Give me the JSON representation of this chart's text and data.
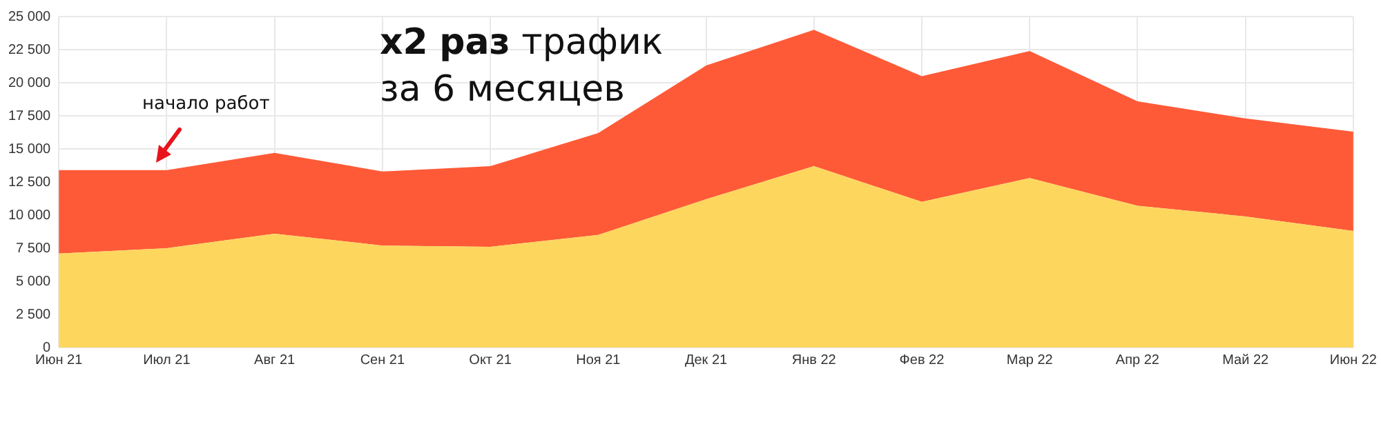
{
  "chart_data": {
    "type": "area",
    "title": "x2 раз трафик\nза 6 месяцев",
    "categories": [
      "Июн 21",
      "Июл 21",
      "Авг 21",
      "Сен 21",
      "Окт 21",
      "Ноя 21",
      "Дек 21",
      "Янв 22",
      "Фев 22",
      "Мар 22",
      "Апр 22",
      "Май 22",
      "Июн 22"
    ],
    "series": [
      {
        "color": "#fdd65e",
        "values": [
          7100,
          7500,
          8600,
          7700,
          7600,
          8500,
          11200,
          13700,
          11000,
          12800,
          10700,
          9900,
          8800
        ]
      },
      {
        "color": "#fe5a37",
        "values": [
          6300,
          5900,
          6100,
          5600,
          6100,
          7700,
          10100,
          10300,
          9500,
          9600,
          7900,
          7400,
          7500
        ]
      }
    ],
    "stacked": true,
    "ylim": [
      0,
      25000
    ],
    "yticks": [
      {
        "value": 0,
        "label": "0"
      },
      {
        "value": 2500,
        "label": "2 500"
      },
      {
        "value": 5000,
        "label": "5 000"
      },
      {
        "value": 7500,
        "label": "7 500"
      },
      {
        "value": 10000,
        "label": "10 000"
      },
      {
        "value": 12500,
        "label": "12 500"
      },
      {
        "value": 15000,
        "label": "15 000"
      },
      {
        "value": 17500,
        "label": "17 500"
      },
      {
        "value": 20000,
        "label": "20 000"
      },
      {
        "value": 22500,
        "label": "22 500"
      },
      {
        "value": 25000,
        "label": "25 000"
      }
    ],
    "annotations": [
      "начало работ"
    ],
    "grid": true,
    "legend": false,
    "marker": "none"
  }
}
